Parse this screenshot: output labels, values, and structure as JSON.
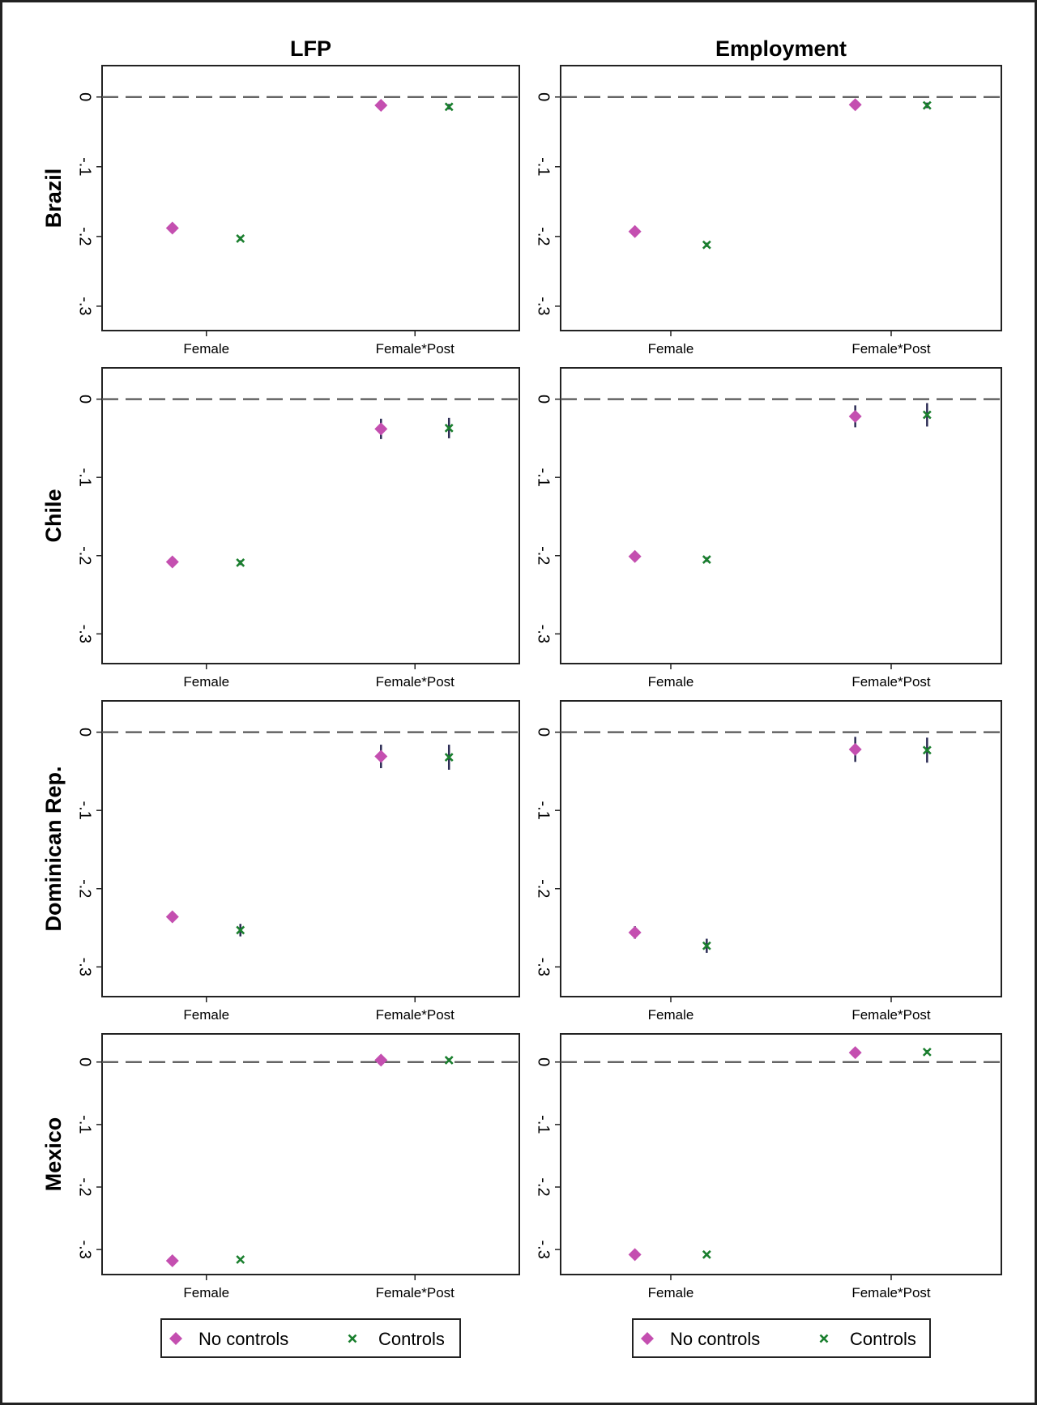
{
  "chart_data": {
    "type": "scatter",
    "columns": [
      "LFP",
      "Employment"
    ],
    "rows": [
      "Brazil",
      "Chile",
      "Dominican Rep.",
      "Mexico"
    ],
    "categories": [
      "Female",
      "Female*Post"
    ],
    "y_tick_values": [
      0,
      -0.1,
      -0.2,
      -0.3
    ],
    "y_tick_labels": [
      "0",
      "-.1",
      "-.2",
      "-.3"
    ],
    "legend": {
      "no_controls": "No controls",
      "controls": "Controls"
    },
    "colors": {
      "no_controls": "#c44fb0",
      "controls": "#1a7f2e",
      "ci": "#2d2d55",
      "reference": "#555555"
    },
    "reference_line": 0,
    "panels": [
      {
        "row": "Brazil",
        "column": "LFP",
        "ylim": [
          -0.335,
          0.045
        ],
        "no_controls": [
          {
            "category": "Female",
            "value": -0.188,
            "ci": [
              -0.191,
              -0.185
            ]
          },
          {
            "category": "Female*Post",
            "value": -0.012,
            "ci": [
              -0.016,
              -0.008
            ]
          }
        ],
        "controls": [
          {
            "category": "Female",
            "value": -0.203,
            "ci": [
              -0.206,
              -0.2
            ]
          },
          {
            "category": "Female*Post",
            "value": -0.014,
            "ci": [
              -0.018,
              -0.01
            ]
          }
        ]
      },
      {
        "row": "Brazil",
        "column": "Employment",
        "ylim": [
          -0.335,
          0.045
        ],
        "no_controls": [
          {
            "category": "Female",
            "value": -0.193,
            "ci": [
              -0.196,
              -0.19
            ]
          },
          {
            "category": "Female*Post",
            "value": -0.011,
            "ci": [
              -0.015,
              -0.007
            ]
          }
        ],
        "controls": [
          {
            "category": "Female",
            "value": -0.212,
            "ci": [
              -0.215,
              -0.209
            ]
          },
          {
            "category": "Female*Post",
            "value": -0.012,
            "ci": [
              -0.016,
              -0.008
            ]
          }
        ]
      },
      {
        "row": "Chile",
        "column": "LFP",
        "ylim": [
          -0.338,
          0.04
        ],
        "no_controls": [
          {
            "category": "Female",
            "value": -0.208,
            "ci": [
              -0.211,
              -0.205
            ]
          },
          {
            "category": "Female*Post",
            "value": -0.038,
            "ci": [
              -0.051,
              -0.025
            ]
          }
        ],
        "controls": [
          {
            "category": "Female",
            "value": -0.209,
            "ci": [
              -0.212,
              -0.206
            ]
          },
          {
            "category": "Female*Post",
            "value": -0.037,
            "ci": [
              -0.05,
              -0.024
            ]
          }
        ]
      },
      {
        "row": "Chile",
        "column": "Employment",
        "ylim": [
          -0.338,
          0.04
        ],
        "no_controls": [
          {
            "category": "Female",
            "value": -0.201,
            "ci": [
              -0.204,
              -0.198
            ]
          },
          {
            "category": "Female*Post",
            "value": -0.022,
            "ci": [
              -0.036,
              -0.008
            ]
          }
        ],
        "controls": [
          {
            "category": "Female",
            "value": -0.205,
            "ci": [
              -0.208,
              -0.202
            ]
          },
          {
            "category": "Female*Post",
            "value": -0.02,
            "ci": [
              -0.035,
              -0.005
            ]
          }
        ]
      },
      {
        "row": "Dominican Rep.",
        "column": "LFP",
        "ylim": [
          -0.338,
          0.04
        ],
        "no_controls": [
          {
            "category": "Female",
            "value": -0.236,
            "ci": [
              -0.243,
              -0.229
            ]
          },
          {
            "category": "Female*Post",
            "value": -0.031,
            "ci": [
              -0.046,
              -0.016
            ]
          }
        ],
        "controls": [
          {
            "category": "Female",
            "value": -0.253,
            "ci": [
              -0.261,
              -0.245
            ]
          },
          {
            "category": "Female*Post",
            "value": -0.032,
            "ci": [
              -0.048,
              -0.016
            ]
          }
        ]
      },
      {
        "row": "Dominican Rep.",
        "column": "Employment",
        "ylim": [
          -0.338,
          0.04
        ],
        "no_controls": [
          {
            "category": "Female",
            "value": -0.256,
            "ci": [
              -0.264,
              -0.248
            ]
          },
          {
            "category": "Female*Post",
            "value": -0.022,
            "ci": [
              -0.038,
              -0.006
            ]
          }
        ],
        "controls": [
          {
            "category": "Female",
            "value": -0.273,
            "ci": [
              -0.282,
              -0.264
            ]
          },
          {
            "category": "Female*Post",
            "value": -0.023,
            "ci": [
              -0.039,
              -0.007
            ]
          }
        ]
      },
      {
        "row": "Mexico",
        "column": "LFP",
        "ylim": [
          -0.34,
          0.045
        ],
        "no_controls": [
          {
            "category": "Female",
            "value": -0.318,
            "ci": [
              -0.32,
              -0.316
            ]
          },
          {
            "category": "Female*Post",
            "value": 0.003,
            "ci": [
              0.0,
              0.006
            ]
          }
        ],
        "controls": [
          {
            "category": "Female",
            "value": -0.316,
            "ci": [
              -0.318,
              -0.314
            ]
          },
          {
            "category": "Female*Post",
            "value": 0.003,
            "ci": [
              0.0,
              0.006
            ]
          }
        ]
      },
      {
        "row": "Mexico",
        "column": "Employment",
        "ylim": [
          -0.34,
          0.045
        ],
        "no_controls": [
          {
            "category": "Female",
            "value": -0.308,
            "ci": [
              -0.31,
              -0.306
            ]
          },
          {
            "category": "Female*Post",
            "value": 0.015,
            "ci": [
              0.012,
              0.018
            ]
          }
        ],
        "controls": [
          {
            "category": "Female",
            "value": -0.308,
            "ci": [
              -0.31,
              -0.306
            ]
          },
          {
            "category": "Female*Post",
            "value": 0.016,
            "ci": [
              0.013,
              0.019
            ]
          }
        ]
      }
    ]
  }
}
